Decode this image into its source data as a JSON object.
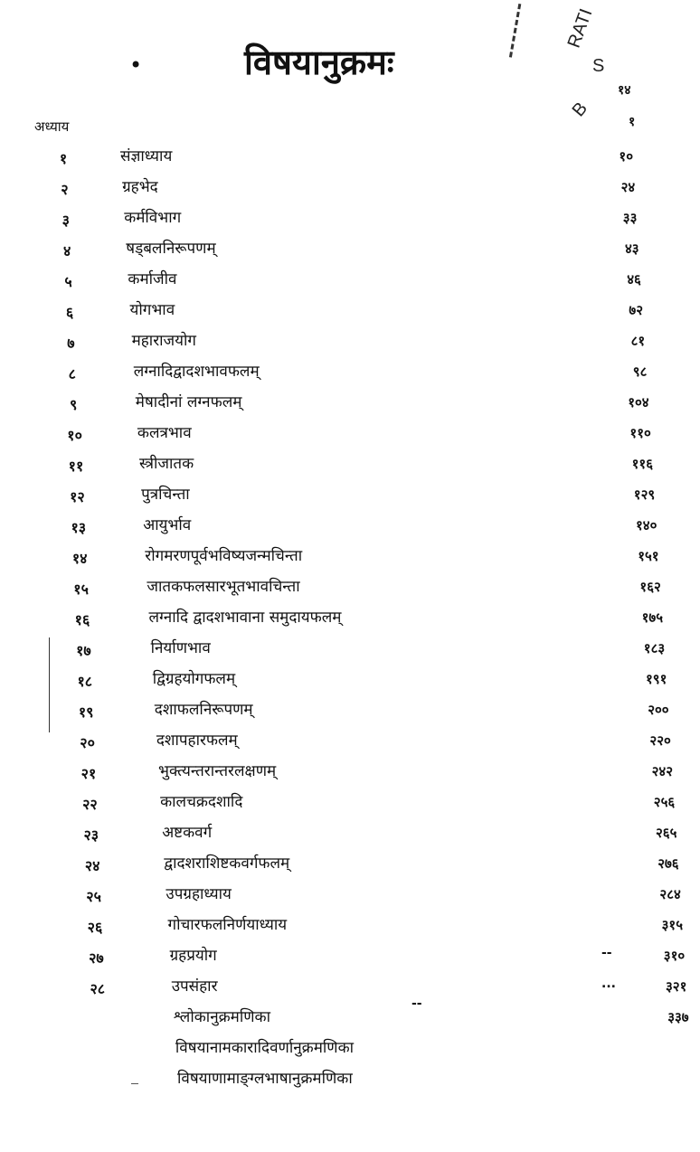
{
  "title": "विषयानुक्रमः",
  "bullet": "•",
  "column_header": "अध्याय",
  "stamp": {
    "text_a": "RATI",
    "text_b": "S",
    "text_c": "B"
  },
  "page_header": {
    "line1": "१४",
    "line2": "१"
  },
  "entries": [
    {
      "num": "१",
      "title": "संज्ञाध्याय",
      "page": "१०"
    },
    {
      "num": "२",
      "title": "ग्रहभेद",
      "page": "२४"
    },
    {
      "num": "३",
      "title": "कर्मविभाग",
      "page": "३३"
    },
    {
      "num": "४",
      "title": "षड्बलनिरूपणम्",
      "page": "४३"
    },
    {
      "num": "५",
      "title": "कर्माजीव",
      "page": "४६"
    },
    {
      "num": "६",
      "title": "योगभाव",
      "page": "७२"
    },
    {
      "num": "७",
      "title": "महाराजयोग",
      "page": "८१"
    },
    {
      "num": "८",
      "title": "लग्नादिद्वादशभावफलम्",
      "page": "९८"
    },
    {
      "num": "९",
      "title": "मेषादीनां लग्नफलम्",
      "page": "१०४"
    },
    {
      "num": "१०",
      "title": "कलत्रभाव",
      "page": "११०"
    },
    {
      "num": "११",
      "title": "स्त्रीजातक",
      "page": "११६"
    },
    {
      "num": "१२",
      "title": "पुत्रचिन्ता",
      "page": "१२९"
    },
    {
      "num": "१३",
      "title": "आयुर्भाव",
      "page": "१४०"
    },
    {
      "num": "१४",
      "title": "रोगमरणपूर्वभविष्यजन्मचिन्ता",
      "page": "१५१"
    },
    {
      "num": "१५",
      "title": "जातकफलसारभूतभावचिन्ता",
      "page": "१६२"
    },
    {
      "num": "१६",
      "title": "लग्नादि द्वादशभावाना समुदायफलम्",
      "page": "१७५"
    },
    {
      "num": "१७",
      "title": "निर्याणभाव",
      "page": "१८३"
    },
    {
      "num": "१८",
      "title": "द्विग्रहयोगफलम्",
      "page": "१९१"
    },
    {
      "num": "१९",
      "title": "दशाफलनिरूपणम्",
      "page": "२००"
    },
    {
      "num": "२०",
      "title": "दशापहारफलम्",
      "page": "२२०"
    },
    {
      "num": "२१",
      "title": "भुक्त्यन्तरान्तरलक्षणम्",
      "page": "२४२"
    },
    {
      "num": "२२",
      "title": "कालचक्रदशादि",
      "page": "२५६"
    },
    {
      "num": "२३",
      "title": "अष्टकवर्ग",
      "page": "२६५"
    },
    {
      "num": "२४",
      "title": "द्वादशराशिष्टकवर्गफलम्",
      "page": "२७६"
    },
    {
      "num": "२५",
      "title": "उपग्रहाध्याय",
      "page": "२८४"
    },
    {
      "num": "२६",
      "title": "गोचारफलनिर्णयाध्याय",
      "page": "३१५"
    },
    {
      "num": "२७",
      "title": "ग्रहप्रयोग",
      "page": "३१०",
      "mark": "--"
    },
    {
      "num": "२८",
      "title": "उपसंहार",
      "page": "३२१",
      "mark": "..."
    },
    {
      "num": "",
      "title": "श्लोकानुक्रमणिका",
      "page": "३३७",
      "mark_mid": "--"
    },
    {
      "num": "",
      "title": "विषयानामकारादिवर्णानुक्रमणिका",
      "page": ""
    },
    {
      "num": "",
      "title": "विषयाणामाङ्ग्लभाषानुक्रमणिका",
      "page": ""
    }
  ]
}
